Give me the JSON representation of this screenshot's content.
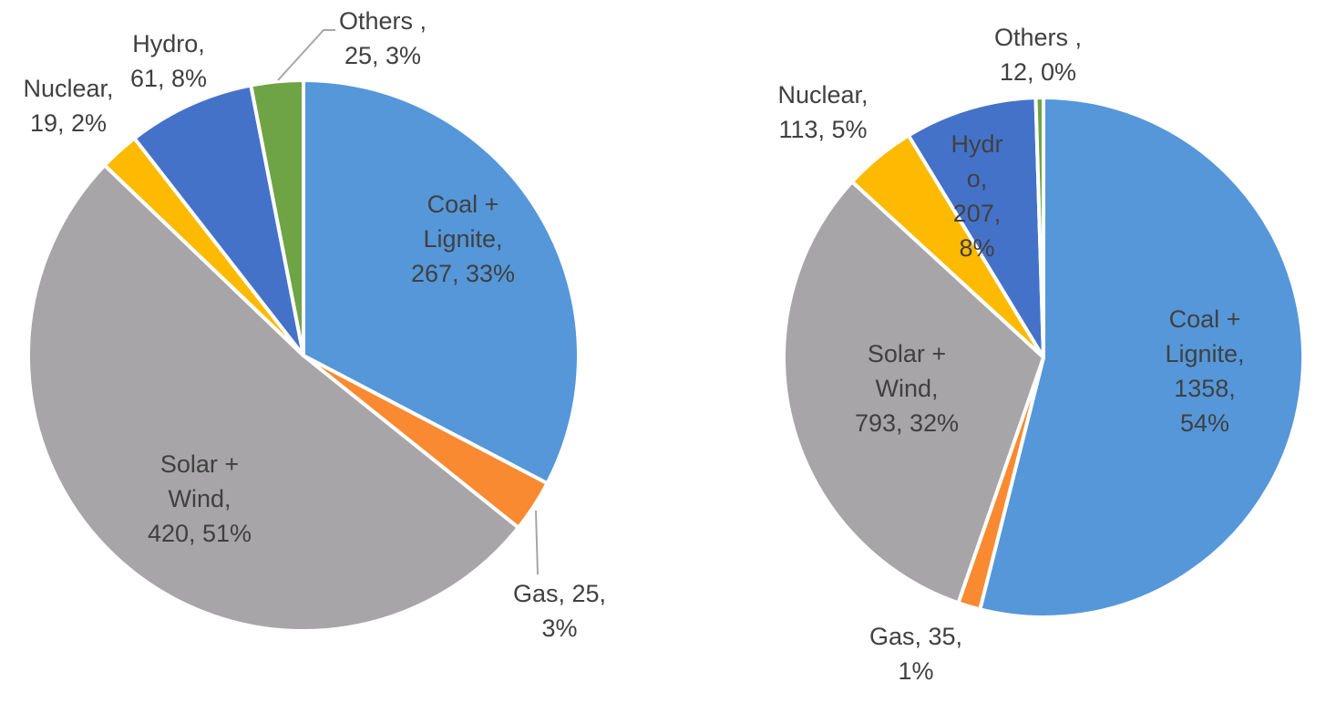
{
  "chart_data": [
    {
      "type": "pie",
      "title": "",
      "start": "top, clockwise",
      "slices": [
        {
          "name": "Coal + Lignite",
          "value": 267,
          "percent": "33%",
          "color": "#5597D9",
          "label": [
            "Coal +",
            "Lignite,",
            "267, 33%"
          ]
        },
        {
          "name": "Gas",
          "value": 25,
          "percent": "3%",
          "color": "#F98A32",
          "label": [
            "Gas, 25,",
            "3%"
          ]
        },
        {
          "name": "Solar + Wind",
          "value": 420,
          "percent": "51%",
          "color": "#A7A5A7",
          "label": [
            "Solar +",
            "Wind,",
            "420, 51%"
          ]
        },
        {
          "name": "Nuclear",
          "value": 19,
          "percent": "2%",
          "color": "#FDBA00",
          "label": [
            "Nuclear,",
            "19, 2%"
          ]
        },
        {
          "name": "Hydro",
          "value": 61,
          "percent": "8%",
          "color": "#4472C9",
          "label": [
            "Hydro,",
            "61, 8%"
          ]
        },
        {
          "name": "Others",
          "value": 25,
          "percent": "3%",
          "color": "#6EA445",
          "label": [
            "Others ,",
            "25, 3%"
          ]
        }
      ]
    },
    {
      "type": "pie",
      "title": "",
      "start": "top, clockwise",
      "slices": [
        {
          "name": "Coal + Lignite",
          "value": 1358,
          "percent": "54%",
          "color": "#5597D9",
          "label": [
            "Coal +",
            "Lignite,",
            "1358,",
            "54%"
          ]
        },
        {
          "name": "Gas",
          "value": 35,
          "percent": "1%",
          "color": "#F98A32",
          "label": [
            "Gas, 35,",
            "1%"
          ]
        },
        {
          "name": "Solar + Wind",
          "value": 793,
          "percent": "32%",
          "color": "#A7A5A7",
          "label": [
            "Solar +",
            "Wind,",
            "793, 32%"
          ]
        },
        {
          "name": "Nuclear",
          "value": 113,
          "percent": "5%",
          "color": "#FDBA00",
          "label": [
            "Nuclear,",
            "113, 5%"
          ]
        },
        {
          "name": "Hydro",
          "value": 207,
          "percent": "8%",
          "color": "#4472C9",
          "label": [
            "Hydr",
            "o,",
            "207,",
            "8%"
          ]
        },
        {
          "name": "Others",
          "value": 12,
          "percent": "0%",
          "color": "#6EA445",
          "label": [
            "Others ,",
            "12, 0%"
          ]
        }
      ]
    }
  ]
}
